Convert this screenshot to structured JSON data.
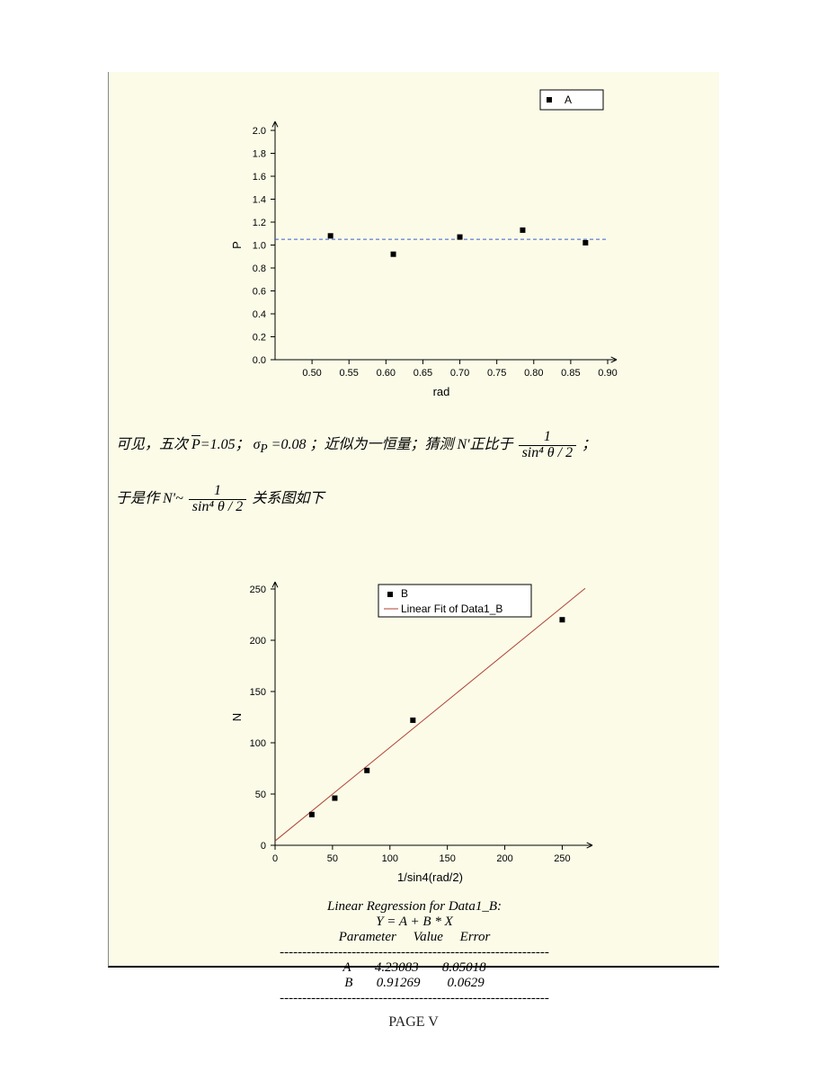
{
  "page_number": "PAGE V",
  "panel_bg": "#fbfbe8",
  "chart_A": {
    "type": "scatter",
    "legend_label": "A",
    "x": [
      0.525,
      0.61,
      0.7,
      0.785,
      0.87
    ],
    "y": [
      1.08,
      0.92,
      1.07,
      1.13,
      1.02
    ],
    "hline_y": 1.05,
    "hline_color": "#3a5fcd",
    "xlim": [
      0.45,
      0.9
    ],
    "xtick_step": 0.05,
    "ylim": [
      0.0,
      2.0
    ],
    "ytick_step": 0.2,
    "xlabel": "rad",
    "ylabel": "P",
    "marker_color": "#000000",
    "background_color": "#fbfbe8",
    "tick_fontsize": 11,
    "label_fontsize": 13,
    "marker_size": 6
  },
  "narrative": {
    "line1_prefix": "可见，五次",
    "p_mean_label": "P",
    "p_mean_value": "1.05",
    "sigma_label": "σ",
    "sigma_sub": "P",
    "sigma_value": "0.08",
    "line1_mid": "；近似为一恒量；猜测 N'正比于",
    "line1_suffix": " ；",
    "line2_prefix": "于是作 N'~",
    "line2_suffix": " 关系图如下",
    "frac_num": "1",
    "frac_den": "sin⁴ θ / 2"
  },
  "chart_B": {
    "type": "scatter+linefit",
    "legend_series_label": "B",
    "legend_fit_label": "Linear Fit of Data1_B",
    "x": [
      32,
      52,
      80,
      120,
      250
    ],
    "y": [
      30,
      46,
      73,
      122,
      220
    ],
    "fit_A": 4.23083,
    "fit_B": 0.91269,
    "fit_color": "#b04030",
    "xlim": [
      0,
      270
    ],
    "xtick_step": 50,
    "ylim": [
      0,
      250
    ],
    "ytick_step": 50,
    "xlabel": "1/sin4(rad/2)",
    "ylabel": "N",
    "marker_color": "#000000",
    "background_color": "#fbfbe8",
    "tick_fontsize": 11,
    "label_fontsize": 13,
    "marker_size": 6
  },
  "regression": {
    "title": "Linear Regression for Data1_B:",
    "equation": "Y = A + B * X",
    "header_parameter": "Parameter",
    "header_value": "Value",
    "header_error": "Error",
    "sep": "------------------------------------------------------------",
    "A_label": "A",
    "A_value": "4.23083",
    "A_error": "8.05018",
    "B_label": "B",
    "B_value": "0.91269",
    "B_error": "0.0629"
  }
}
